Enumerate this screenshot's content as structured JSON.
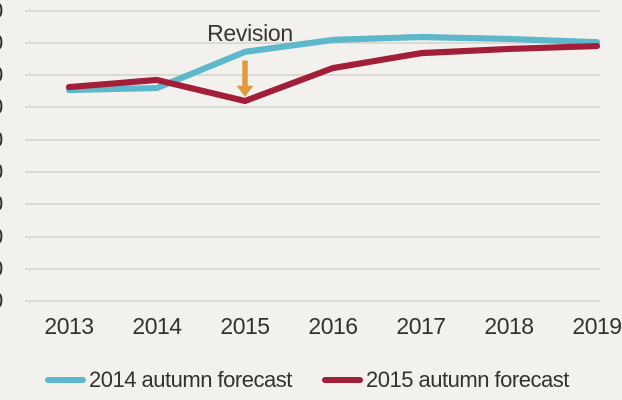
{
  "figure": {
    "background_color": "#f2f1ed",
    "gridline_color": "#dbdad4",
    "text_color": "#3a3935"
  },
  "legend": {
    "items": [
      {
        "label": "2014 autumn forecast",
        "color": "#5eb8cb"
      },
      {
        "label": "2015 autumn forecast",
        "color": "#a31e39"
      }
    ]
  },
  "chart_data": {
    "type": "line",
    "title": "",
    "x": [
      2013,
      2014,
      2015,
      2016,
      2017,
      2018,
      2019
    ],
    "x_tick_labels": [
      "2013",
      "2014",
      "2015",
      "2016",
      "2017",
      "2018",
      "2019"
    ],
    "series": [
      {
        "name": "2014 autumn forecast",
        "color": "#5eb8cb",
        "values": [
          165.4,
          166.0,
          177.2,
          180.9,
          181.8,
          181.2,
          180.2
        ]
      },
      {
        "name": "2015 autumn forecast",
        "color": "#a31e39",
        "values": [
          166.3,
          168.5,
          162.0,
          172.2,
          176.8,
          178.1,
          179.0
        ]
      }
    ],
    "y_axis": {
      "min": 100,
      "max": 190,
      "grid_step": 10,
      "tick_labels_truncated": true,
      "visible_tick_fragment": "0"
    },
    "annotation": {
      "label": "Revision",
      "x": 2015,
      "arrow_color": "#e2993d",
      "arrow_from_value": 174.5,
      "arrow_to_value": 163.3
    },
    "grid": true,
    "legend_position": "bottom"
  }
}
